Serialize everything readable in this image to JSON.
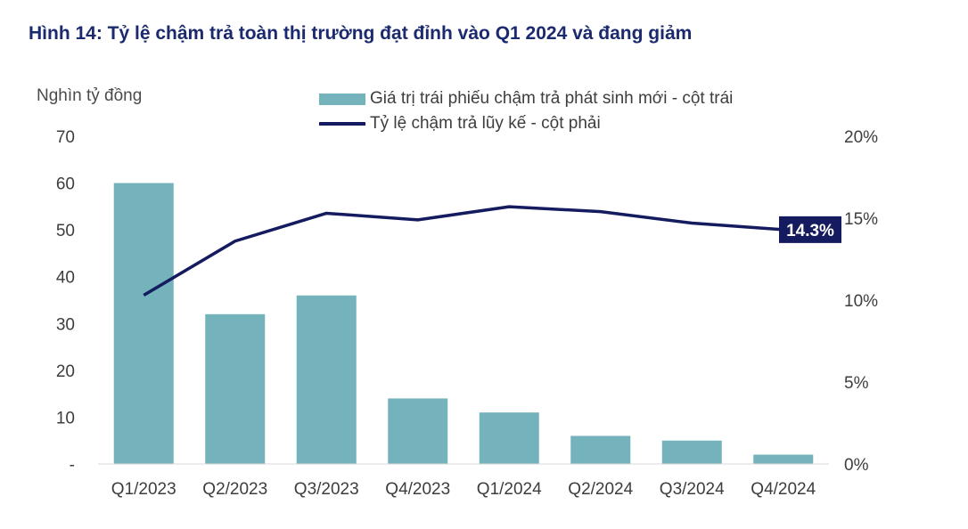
{
  "title": "Hình 14: Tỷ lệ chậm trả toàn thị trường đạt đỉnh vào Q1 2024 và đang giảm",
  "colors": {
    "bar": "#74b3bb",
    "line": "#141b5e",
    "title": "#1b2a6e",
    "badge": "#141b5e"
  },
  "chart_data": {
    "type": "bar",
    "ylabel": "Nghìn tỷ đồng",
    "categories": [
      "Q1/2023",
      "Q2/2023",
      "Q3/2023",
      "Q4/2023",
      "Q1/2024",
      "Q2/2024",
      "Q3/2024",
      "Q4/2024"
    ],
    "series": [
      {
        "name": "Giá trị trái phiếu chậm trả phát sinh mới - cột trái",
        "type": "bar",
        "axis": "left",
        "values": [
          60,
          32,
          36,
          14,
          11,
          6,
          5,
          2
        ]
      },
      {
        "name": "Tỷ lệ chậm trả lũy kế - cột phải",
        "type": "line",
        "axis": "right",
        "values": [
          10.3,
          13.6,
          15.3,
          14.9,
          15.7,
          15.4,
          14.7,
          14.3
        ]
      }
    ],
    "ylim_left": [
      0,
      70
    ],
    "ylim_right": [
      0,
      20
    ],
    "left_ticks": [
      {
        "value": 0,
        "label": "-"
      },
      {
        "value": 10,
        "label": "10"
      },
      {
        "value": 20,
        "label": "20"
      },
      {
        "value": 30,
        "label": "30"
      },
      {
        "value": 40,
        "label": "40"
      },
      {
        "value": 50,
        "label": "50"
      },
      {
        "value": 60,
        "label": "60"
      },
      {
        "value": 70,
        "label": "70"
      }
    ],
    "right_ticks": [
      {
        "value": 0,
        "label": "0%"
      },
      {
        "value": 5,
        "label": "5%"
      },
      {
        "value": 10,
        "label": "10%"
      },
      {
        "value": 15,
        "label": "15%"
      },
      {
        "value": 20,
        "label": "20%"
      }
    ],
    "annotation": {
      "label": "14.3%",
      "index": 7
    },
    "grid": false,
    "legend_position": "top"
  }
}
